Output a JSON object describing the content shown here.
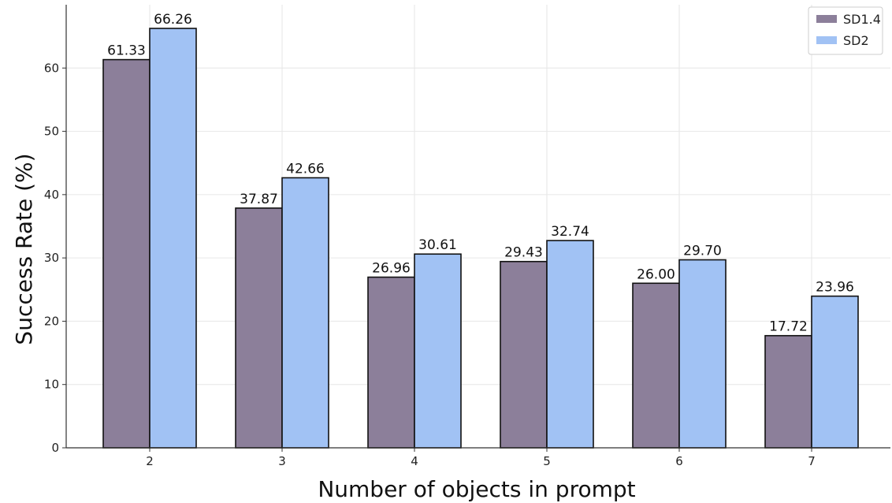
{
  "chart_data": {
    "type": "bar",
    "title": "",
    "xlabel": "Number of objects in prompt",
    "ylabel": "Success Rate (%)",
    "categories": [
      "2",
      "3",
      "4",
      "5",
      "6",
      "7"
    ],
    "series": [
      {
        "name": "SD1.4",
        "color": "#8c7f9a",
        "values": [
          61.33,
          37.87,
          26.96,
          29.43,
          26.0,
          17.72
        ],
        "labels": [
          "61.33",
          "37.87",
          "26.96",
          "29.43",
          "26.00",
          "17.72"
        ]
      },
      {
        "name": "SD2",
        "color": "#a1c2f4",
        "values": [
          66.26,
          42.66,
          30.61,
          32.74,
          29.7,
          23.96
        ],
        "labels": [
          "66.26",
          "42.66",
          "30.61",
          "32.74",
          "29.70",
          "23.96"
        ]
      }
    ],
    "ylim": [
      0,
      70
    ],
    "yticks": [
      "0",
      "10",
      "20",
      "30",
      "40",
      "50",
      "60"
    ],
    "grid": true,
    "legend_position": "top-right"
  }
}
